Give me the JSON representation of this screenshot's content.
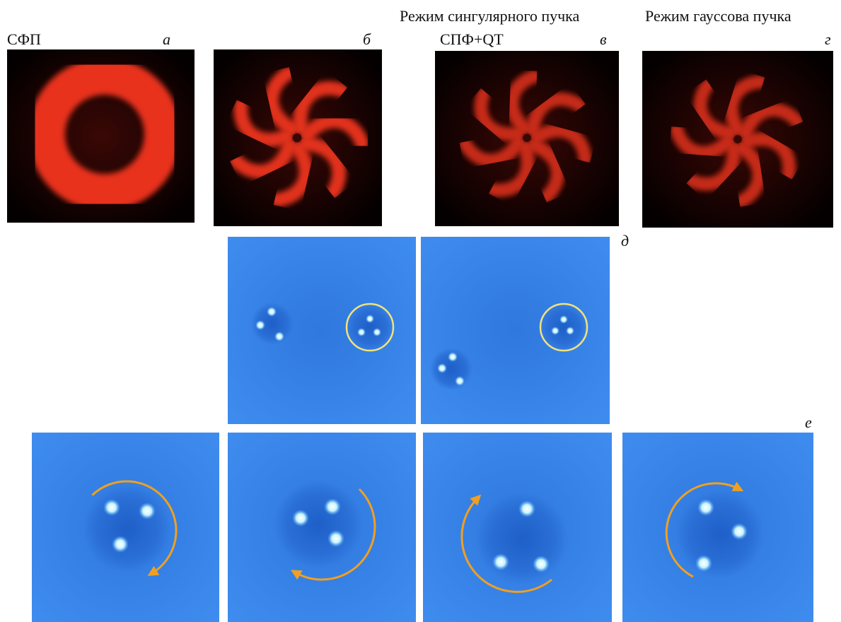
{
  "header": {
    "singular_mode": "Режим сингулярного пучка",
    "gaussian_mode": "Режим гауссова пучка"
  },
  "panels": [
    {
      "label": "а",
      "caption": "СФП"
    },
    {
      "label": "б"
    },
    {
      "label": "в",
      "caption": "СПФ+QT"
    },
    {
      "label": "г"
    },
    {
      "label": "д"
    },
    {
      "label": "е"
    }
  ]
}
